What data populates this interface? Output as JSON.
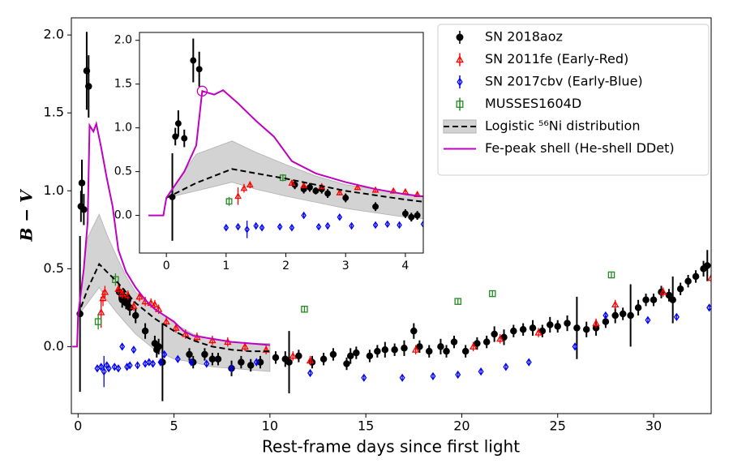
{
  "chart_data": {
    "type": "scatter",
    "xlabel": "Rest-frame days since first light",
    "ylabel": "B − V",
    "xlim": [
      -0.35,
      33
    ],
    "ylim": [
      -0.43,
      2.11
    ],
    "xticks": [
      0,
      5,
      10,
      15,
      20,
      25,
      30
    ],
    "yticks": [
      {
        "value": 0,
        "label": "0.0"
      },
      0.5,
      {
        "value": 1,
        "label": "1.0"
      },
      1.5,
      {
        "value": 2,
        "label": "2.0"
      }
    ],
    "legend": "upper right",
    "inset": {
      "xlim": [
        -0.45,
        4.3
      ],
      "ylim": [
        -0.43,
        2.09
      ],
      "xticks": [
        0,
        1,
        2,
        3,
        4
      ],
      "yticks": [
        {
          "value": 0,
          "label": "0.0"
        },
        0.5,
        {
          "value": 1,
          "label": "1.0"
        },
        1.5,
        {
          "value": 2,
          "label": "2.0"
        }
      ],
      "highlight": {
        "x": 0.6,
        "y": 1.42,
        "color": "#c000c0"
      }
    },
    "series": [
      {
        "name": "SN 2018aoz",
        "color": "#000000",
        "marker": "o",
        "filled": true,
        "x": [
          0.1,
          0.15,
          0.2,
          0.3,
          0.45,
          0.55,
          2.15,
          2.3,
          2.4,
          2.5,
          2.6,
          2.7,
          3.0,
          3.5,
          4.0,
          4.1,
          4.2,
          4.4,
          5.8,
          6.0,
          6.6,
          7.0,
          7.3,
          8.0,
          8.5,
          9.0,
          9.5,
          10.3,
          10.8,
          11.0,
          11.5,
          12.2,
          12.8,
          13.3,
          14.0,
          14.2,
          14.5,
          15.2,
          15.6,
          16.0,
          16.5,
          17.0,
          17.5,
          17.8,
          18.3,
          18.9,
          19.2,
          19.6,
          20.2,
          20.8,
          21.3,
          21.7,
          22.2,
          22.7,
          23.2,
          23.7,
          24.2,
          24.6,
          25.0,
          25.5,
          26.0,
          26.5,
          27.0,
          27.5,
          28.0,
          28.4,
          28.8,
          29.2,
          29.6,
          30.0,
          30.4,
          30.8,
          31.0,
          31.4,
          31.8,
          32.2,
          32.6,
          32.8
        ],
        "values": [
          0.21,
          0.9,
          1.05,
          0.88,
          1.77,
          1.67,
          0.35,
          0.3,
          0.32,
          0.28,
          0.3,
          0.25,
          0.2,
          0.1,
          0.02,
          -0.02,
          0.0,
          -0.1,
          -0.05,
          -0.1,
          -0.05,
          -0.08,
          -0.08,
          -0.14,
          -0.1,
          -0.12,
          -0.1,
          -0.07,
          -0.08,
          -0.1,
          -0.06,
          -0.1,
          -0.08,
          -0.05,
          -0.11,
          -0.06,
          -0.04,
          -0.06,
          -0.03,
          -0.02,
          -0.02,
          -0.01,
          0.1,
          0.0,
          -0.03,
          0.0,
          -0.03,
          0.03,
          -0.03,
          0.02,
          0.03,
          0.08,
          0.06,
          0.1,
          0.11,
          0.12,
          0.1,
          0.14,
          0.13,
          0.15,
          0.12,
          0.11,
          0.12,
          0.16,
          0.2,
          0.21,
          0.2,
          0.25,
          0.3,
          0.3,
          0.35,
          0.33,
          0.3,
          0.37,
          0.42,
          0.45,
          0.5,
          0.52
        ],
        "errors": [
          0.5,
          0.1,
          0.15,
          0.1,
          0.25,
          0.2,
          0.05,
          0.05,
          0.05,
          0.04,
          0.05,
          0.05,
          0.05,
          0.05,
          0.05,
          0.05,
          0.05,
          0.25,
          0.04,
          0.04,
          0.04,
          0.04,
          0.04,
          0.05,
          0.04,
          0.04,
          0.04,
          0.04,
          0.05,
          0.2,
          0.04,
          0.04,
          0.04,
          0.04,
          0.04,
          0.05,
          0.04,
          0.04,
          0.04,
          0.05,
          0.04,
          0.05,
          0.05,
          0.04,
          0.04,
          0.05,
          0.04,
          0.04,
          0.04,
          0.04,
          0.04,
          0.05,
          0.05,
          0.04,
          0.04,
          0.05,
          0.04,
          0.05,
          0.04,
          0.05,
          0.2,
          0.05,
          0.05,
          0.04,
          0.05,
          0.04,
          0.2,
          0.05,
          0.04,
          0.04,
          0.04,
          0.04,
          0.15,
          0.04,
          0.04,
          0.04,
          0.05,
          0.1
        ]
      },
      {
        "name": "SN 2011fe (Early-Red)",
        "color": "#ff0000",
        "marker": "^",
        "filled": false,
        "x": [
          1.2,
          1.3,
          1.4,
          2.1,
          2.3,
          2.6,
          2.9,
          3.2,
          3.5,
          3.8,
          4.0,
          4.2,
          4.6,
          5.1,
          5.6,
          6.2,
          7.0,
          7.8,
          8.7,
          9.8,
          11.2,
          12.1,
          17.6,
          20.6,
          22.0,
          24.0,
          27.0,
          28.0,
          30.5,
          33.0
        ],
        "values": [
          0.22,
          0.31,
          0.35,
          0.37,
          0.34,
          0.33,
          0.26,
          0.32,
          0.29,
          0.28,
          0.27,
          0.24,
          0.16,
          0.12,
          0.08,
          0.06,
          0.04,
          0.03,
          0.0,
          -0.02,
          -0.06,
          -0.09,
          -0.02,
          0.0,
          0.05,
          0.09,
          0.15,
          0.27,
          0.35,
          0.44
        ],
        "errors": [
          0.1,
          0.05,
          0.04,
          0.03,
          0.03,
          0.03,
          0.03,
          0.03,
          0.03,
          0.03,
          0.03,
          0.03,
          0.03,
          0.03,
          0.03,
          0.03,
          0.03,
          0.03,
          0.03,
          0.03,
          0.03,
          0.03,
          0.03,
          0.03,
          0.03,
          0.03,
          0.03,
          0.03,
          0.03,
          0.03
        ]
      },
      {
        "name": "SN 2017cbv (Early-Blue)",
        "color": "#0000ff",
        "marker": "D",
        "filled": false,
        "x": [
          1.0,
          1.2,
          1.35,
          1.5,
          1.6,
          1.9,
          2.1,
          2.3,
          2.55,
          2.7,
          2.9,
          3.1,
          3.5,
          3.7,
          3.9,
          4.3,
          4.5,
          5.2,
          5.9,
          6.7,
          8.0,
          9.3,
          12.1,
          14.9,
          16.9,
          18.5,
          19.8,
          21.0,
          22.3,
          23.5,
          25.9,
          27.5,
          29.7,
          31.2,
          32.9
        ],
        "values": [
          -0.14,
          -0.13,
          -0.16,
          -0.12,
          -0.14,
          -0.13,
          -0.14,
          0.0,
          -0.13,
          -0.12,
          -0.02,
          -0.12,
          -0.11,
          -0.1,
          -0.11,
          -0.1,
          -0.05,
          -0.08,
          -0.1,
          -0.11,
          -0.14,
          -0.1,
          -0.17,
          -0.2,
          -0.2,
          -0.19,
          -0.18,
          -0.16,
          -0.13,
          -0.1,
          0.0,
          0.2,
          0.17,
          0.19,
          0.25
        ],
        "errors": [
          0.02,
          0.02,
          0.1,
          0.02,
          0.02,
          0.02,
          0.02,
          0.02,
          0.02,
          0.02,
          0.02,
          0.02,
          0.02,
          0.02,
          0.02,
          0.02,
          0.02,
          0.02,
          0.02,
          0.02,
          0.02,
          0.02,
          0.02,
          0.02,
          0.02,
          0.02,
          0.02,
          0.02,
          0.02,
          0.02,
          0.02,
          0.02,
          0.02,
          0.02,
          0.02
        ]
      },
      {
        "name": "MUSSES1604D",
        "color": "#228b22",
        "marker": "s",
        "filled": false,
        "x": [
          1.05,
          1.95,
          11.8,
          19.8,
          21.6,
          27.8
        ],
        "values": [
          0.16,
          0.43,
          0.24,
          0.29,
          0.34,
          0.46
        ],
        "errors": [
          0.05,
          0.04,
          0.02,
          0.02,
          0.02,
          0.02
        ]
      },
      {
        "name": "Logistic ⁵⁶Ni distribution",
        "color": "#000000",
        "line": "dashed",
        "band_color": "#d3d3d3",
        "x": [
          0,
          0.5,
          1.1,
          1.5,
          2.0,
          2.5,
          3.0,
          4.0,
          5.0,
          6.0,
          7.0,
          8.0,
          9.0,
          10.0
        ],
        "values": [
          0.2,
          0.37,
          0.53,
          0.48,
          0.42,
          0.35,
          0.28,
          0.18,
          0.1,
          0.04,
          0.0,
          -0.02,
          -0.03,
          -0.03
        ],
        "lower": [
          0.2,
          0.28,
          0.38,
          0.3,
          0.22,
          0.15,
          0.08,
          -0.02,
          -0.08,
          -0.1,
          -0.13,
          -0.14,
          -0.15,
          -0.16
        ],
        "upper": [
          0.2,
          0.7,
          0.85,
          0.72,
          0.58,
          0.45,
          0.35,
          0.25,
          0.15,
          0.08,
          0.05,
          0.03,
          0.02,
          0.02
        ]
      },
      {
        "name": "Fe-peak shell (He-shell DDet)",
        "color": "#c000c0",
        "line": "solid",
        "x": [
          -0.3,
          -0.05,
          0.0,
          0.3,
          0.5,
          0.6,
          0.8,
          0.95,
          1.2,
          1.5,
          1.8,
          2.1,
          2.5,
          3.0,
          3.5,
          4.0,
          4.5,
          5.0,
          5.5,
          6.0,
          7.0,
          8.0,
          9.0,
          10.0
        ],
        "values": [
          0.0,
          0.0,
          0.2,
          0.5,
          0.8,
          1.42,
          1.38,
          1.43,
          1.28,
          1.08,
          0.9,
          0.62,
          0.48,
          0.38,
          0.3,
          0.24,
          0.2,
          0.16,
          0.1,
          0.07,
          0.05,
          0.03,
          0.02,
          0.01
        ]
      }
    ]
  }
}
